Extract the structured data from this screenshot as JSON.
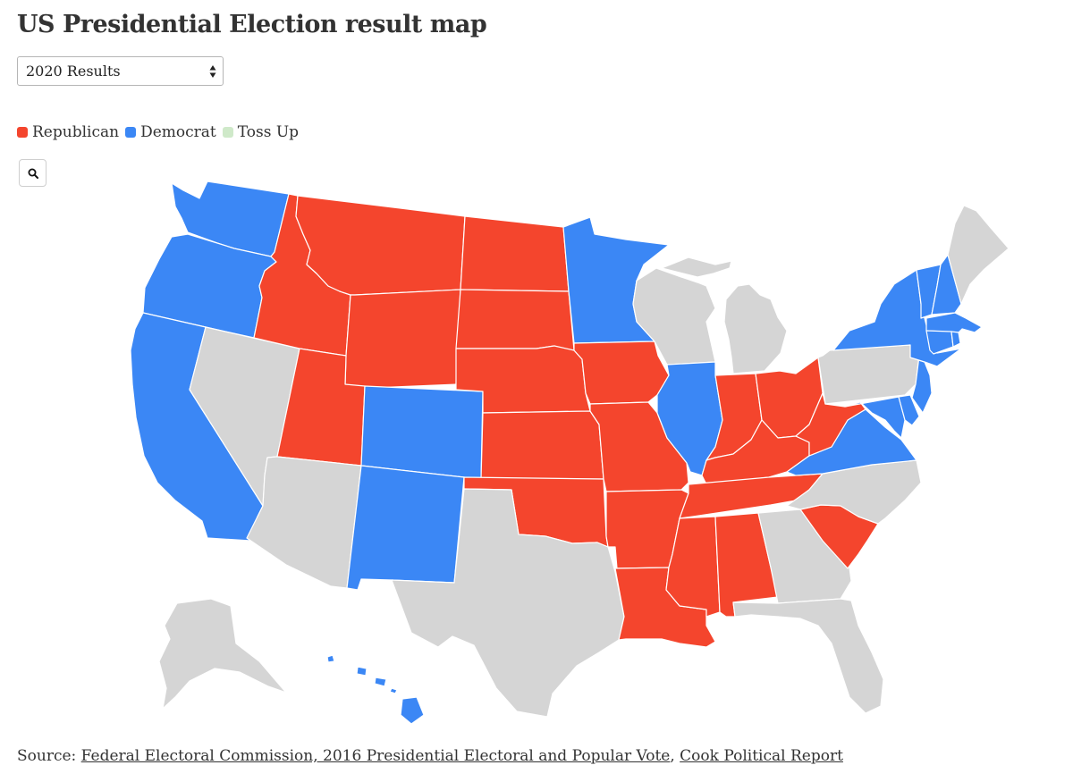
{
  "header": {
    "title": "US Presidential Election result map"
  },
  "selector": {
    "selected": "2020 Results"
  },
  "legend": [
    {
      "label": "Republican",
      "color": "#f4452d"
    },
    {
      "label": "Democrat",
      "color": "#3b87f5"
    },
    {
      "label": "Toss Up",
      "color": "#cfe9c9"
    }
  ],
  "colors": {
    "R": "#f4452d",
    "D": "#3b87f5",
    "N": "#d5d5d5"
  },
  "map": {
    "zoom_icon": "search-icon",
    "states": [
      {
        "id": "WA",
        "result": "D"
      },
      {
        "id": "OR",
        "result": "D"
      },
      {
        "id": "CA",
        "result": "D"
      },
      {
        "id": "NV",
        "result": "N"
      },
      {
        "id": "ID",
        "result": "R"
      },
      {
        "id": "MT",
        "result": "R"
      },
      {
        "id": "WY",
        "result": "R"
      },
      {
        "id": "UT",
        "result": "R"
      },
      {
        "id": "AZ",
        "result": "N"
      },
      {
        "id": "CO",
        "result": "D"
      },
      {
        "id": "NM",
        "result": "D"
      },
      {
        "id": "ND",
        "result": "R"
      },
      {
        "id": "SD",
        "result": "R"
      },
      {
        "id": "NE",
        "result": "R"
      },
      {
        "id": "KS",
        "result": "R"
      },
      {
        "id": "OK",
        "result": "R"
      },
      {
        "id": "TX",
        "result": "N"
      },
      {
        "id": "MN",
        "result": "D"
      },
      {
        "id": "IA",
        "result": "R"
      },
      {
        "id": "MO",
        "result": "R"
      },
      {
        "id": "AR",
        "result": "R"
      },
      {
        "id": "LA",
        "result": "R"
      },
      {
        "id": "WI",
        "result": "N"
      },
      {
        "id": "MI",
        "result": "N"
      },
      {
        "id": "IL",
        "result": "D"
      },
      {
        "id": "IN",
        "result": "R"
      },
      {
        "id": "OH",
        "result": "R"
      },
      {
        "id": "KY",
        "result": "R"
      },
      {
        "id": "TN",
        "result": "R"
      },
      {
        "id": "MS",
        "result": "R"
      },
      {
        "id": "AL",
        "result": "R"
      },
      {
        "id": "GA",
        "result": "N"
      },
      {
        "id": "FL",
        "result": "N"
      },
      {
        "id": "SC",
        "result": "R"
      },
      {
        "id": "NC",
        "result": "N"
      },
      {
        "id": "VA",
        "result": "D"
      },
      {
        "id": "WV",
        "result": "R"
      },
      {
        "id": "PA",
        "result": "N"
      },
      {
        "id": "NY",
        "result": "D"
      },
      {
        "id": "VT",
        "result": "D"
      },
      {
        "id": "NH",
        "result": "D"
      },
      {
        "id": "ME",
        "result": "N"
      },
      {
        "id": "MA",
        "result": "D"
      },
      {
        "id": "CT",
        "result": "D"
      },
      {
        "id": "RI",
        "result": "D"
      },
      {
        "id": "NJ",
        "result": "D"
      },
      {
        "id": "DE",
        "result": "D"
      },
      {
        "id": "MD",
        "result": "D"
      },
      {
        "id": "AK",
        "result": "N"
      },
      {
        "id": "HI",
        "result": "D"
      }
    ]
  },
  "source": {
    "prefix": "Source: ",
    "link1": "Federal Electoral Commission, 2016 Presidential Electoral and Popular Vote",
    "separator": ", ",
    "link2": "Cook Political Report"
  }
}
